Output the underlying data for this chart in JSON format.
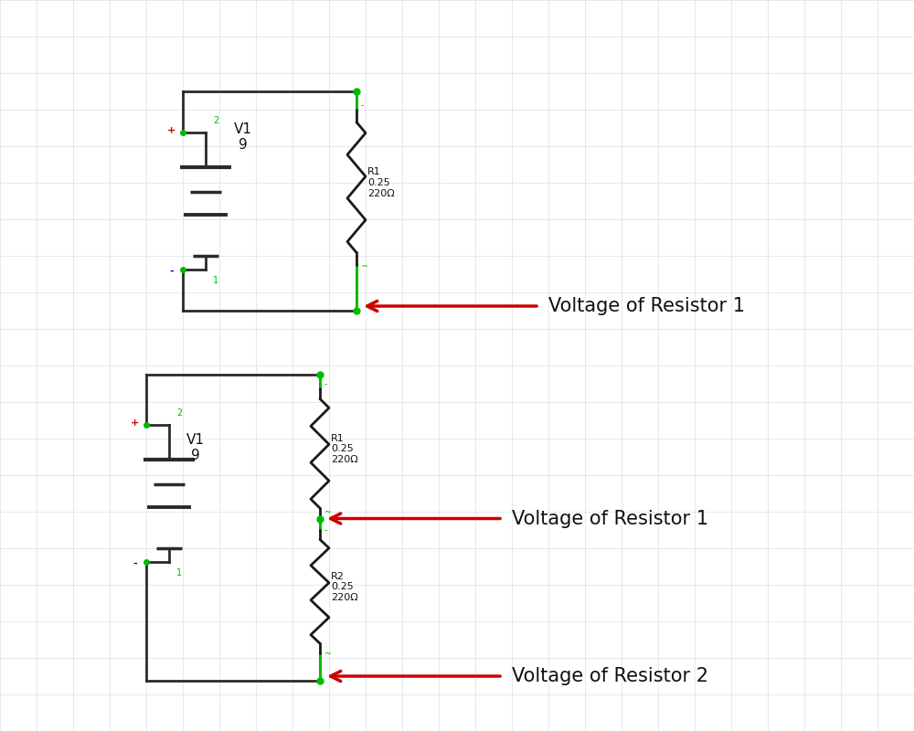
{
  "bg_color": "#ffffff",
  "grid_color": "#c8d4e0",
  "circuit1": {
    "label_v": "V1\n9",
    "label_r": "R1\n0.25\n220Ω",
    "arrow_label": "Voltage of Resistor 1"
  },
  "circuit2": {
    "label_v": "V1\n9",
    "label_r1": "R1\n0.25\n220Ω",
    "label_r2": "R2\n0.25\n220Ω",
    "arrow_label1": "Voltage of Resistor 1",
    "arrow_label2": "Voltage of Resistor 2"
  },
  "wire_color": "#2a2a2a",
  "resistor_color": "#1a1a1a",
  "green_color": "#00bb00",
  "arrow_color": "#cc0000",
  "text_color": "#111111",
  "plus_color": "#cc0000",
  "minus_color": "#0000bb",
  "node_label_color": "#00aa00"
}
